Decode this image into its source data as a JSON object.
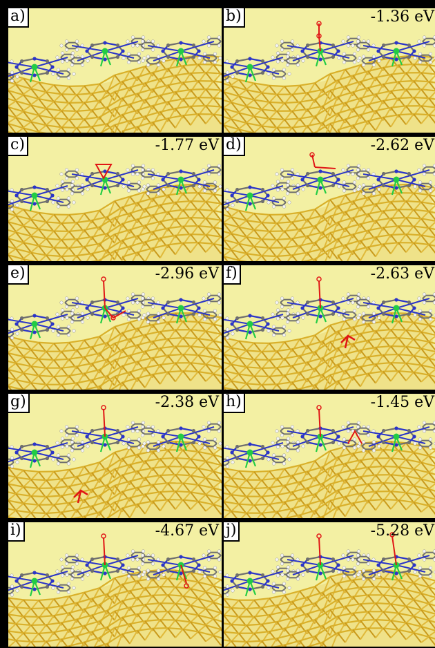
{
  "panels": [
    {
      "label": "a)",
      "energy": ""
    },
    {
      "label": "b)",
      "energy": "-1.36 eV"
    },
    {
      "label": "c)",
      "energy": "-1.77 eV"
    },
    {
      "label": "d)",
      "energy": "-2.62 eV"
    },
    {
      "label": "e)",
      "energy": "-2.96 eV"
    },
    {
      "label": "f)",
      "energy": "-2.63 eV"
    },
    {
      "label": "g)",
      "energy": "-2.38 eV"
    },
    {
      "label": "h)",
      "energy": "-1.45 eV"
    },
    {
      "label": "i)",
      "energy": "-4.67 eV"
    },
    {
      "label": "j)",
      "energy": "-5.28 eV"
    }
  ],
  "colors": {
    "background": "#f3f0a3",
    "gold": "#d9b02a",
    "metal_atom": "#22cc44",
    "nitrogen": "#2b35c8",
    "carbon": "#6f6f6f",
    "hydrogen": "#f4f4f4",
    "oxygen": "#e01515"
  }
}
